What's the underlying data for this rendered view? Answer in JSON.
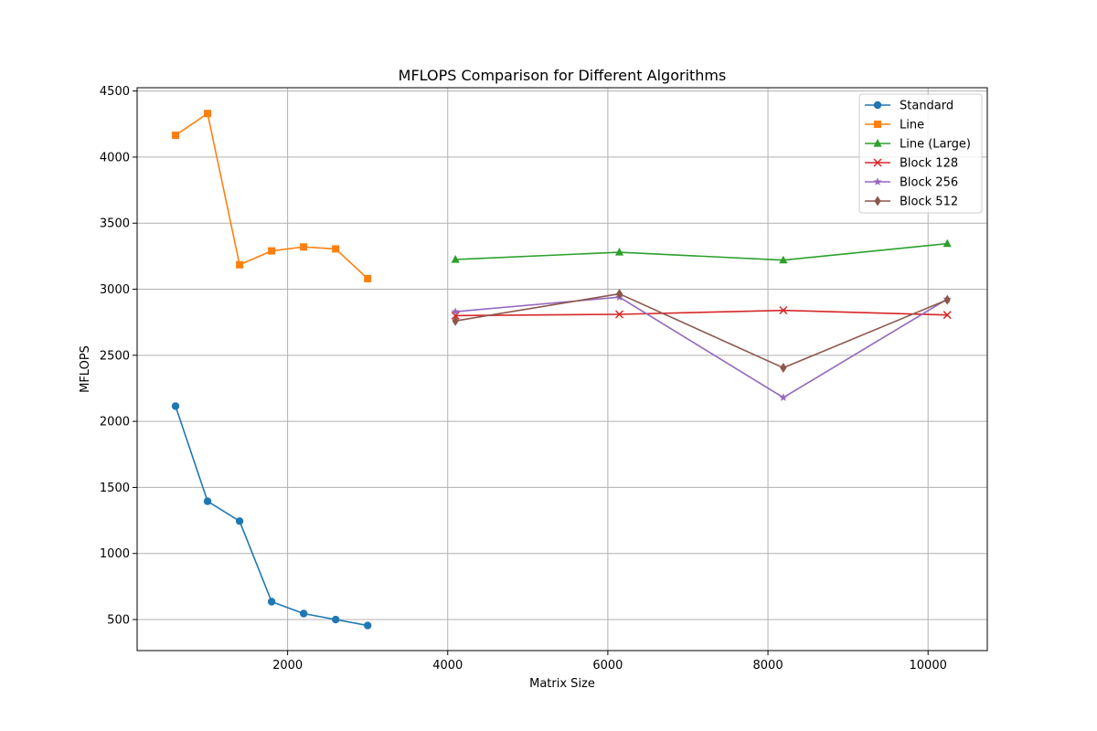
{
  "chart_data": {
    "type": "line",
    "title": "MFLOPS Comparison for Different Algorithms",
    "xlabel": "Matrix Size",
    "ylabel": "MFLOPS",
    "xlim": [
      120,
      10740
    ],
    "ylim": [
      265,
      4525
    ],
    "xticks": [
      2000,
      4000,
      6000,
      8000,
      10000
    ],
    "yticks": [
      500,
      1000,
      1500,
      2000,
      2500,
      3000,
      3500,
      4000,
      4500
    ],
    "grid": true,
    "legend_position": "top-right",
    "series": [
      {
        "name": "Standard",
        "color": "#1f77b4",
        "marker": "circle",
        "x": [
          600,
          1000,
          1400,
          1800,
          2200,
          2600,
          3000
        ],
        "y": [
          2115,
          1395,
          1245,
          635,
          545,
          500,
          455
        ]
      },
      {
        "name": "Line",
        "color": "#ff7f0e",
        "marker": "square",
        "x": [
          600,
          1000,
          1400,
          1800,
          2200,
          2600,
          3000
        ],
        "y": [
          4165,
          4330,
          3185,
          3290,
          3320,
          3305,
          3080
        ]
      },
      {
        "name": "Line (Large)",
        "color": "#2ca02c",
        "marker": "triangle-up",
        "x": [
          4096,
          6144,
          8192,
          10240
        ],
        "y": [
          3225,
          3280,
          3220,
          3345
        ]
      },
      {
        "name": "Block 128",
        "color": "#d62728",
        "marker": "x",
        "x": [
          4096,
          6144,
          8192,
          10240
        ],
        "y": [
          2800,
          2810,
          2840,
          2805
        ]
      },
      {
        "name": "Block 256",
        "color": "#9467bd",
        "marker": "star",
        "x": [
          4096,
          6144,
          8192,
          10240
        ],
        "y": [
          2830,
          2940,
          2180,
          2925
        ]
      },
      {
        "name": "Block 512",
        "color": "#8c564b",
        "marker": "diamond",
        "x": [
          4096,
          6144,
          8192,
          10240
        ],
        "y": [
          2760,
          2965,
          2405,
          2920
        ]
      }
    ]
  }
}
